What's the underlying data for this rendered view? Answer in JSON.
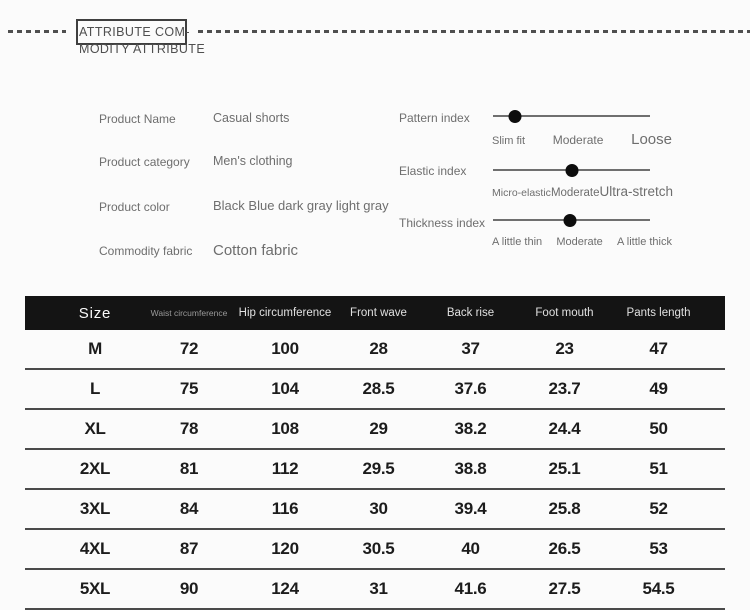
{
  "header": {
    "title_line1": "ATTRIBUTE COM-",
    "title_line2": "MODITY ATTRIBUTE"
  },
  "attributes": [
    {
      "label": "Product Name",
      "value": "Casual shorts"
    },
    {
      "label": "Product category",
      "value": "Men's clothing"
    },
    {
      "label": "Product color",
      "value": "Black Blue dark gray light gray"
    },
    {
      "label": "Commodity fabric",
      "value": "Cotton fabric"
    }
  ],
  "sliders": [
    {
      "label": "Pattern index",
      "value_pct": 14,
      "ticks": [
        "Slim fit",
        "Moderate",
        "Loose"
      ]
    },
    {
      "label": "Elastic index",
      "value_pct": 50,
      "ticks": [
        "Micro-elastic",
        "Moderate",
        "Ultra-stretch"
      ]
    },
    {
      "label": "Thickness index",
      "value_pct": 49,
      "ticks": [
        "A little thin",
        "Moderate",
        "A little thick"
      ]
    }
  ],
  "size_table": {
    "columns": [
      "Size",
      "Waist circumference",
      "Hip circumference",
      "Front wave",
      "Back rise",
      "Foot mouth",
      "Pants length"
    ],
    "rows": [
      [
        "M",
        "72",
        "100",
        "28",
        "37",
        "23",
        "47"
      ],
      [
        "L",
        "75",
        "104",
        "28.5",
        "37.6",
        "23.7",
        "49"
      ],
      [
        "XL",
        "78",
        "108",
        "29",
        "38.2",
        "24.4",
        "50"
      ],
      [
        "2XL",
        "81",
        "112",
        "29.5",
        "38.8",
        "25.1",
        "51"
      ],
      [
        "3XL",
        "84",
        "116",
        "30",
        "39.4",
        "25.8",
        "52"
      ],
      [
        "4XL",
        "87",
        "120",
        "30.5",
        "40",
        "26.5",
        "53"
      ],
      [
        "5XL",
        "90",
        "124",
        "31",
        "41.6",
        "27.5",
        "54.5"
      ]
    ]
  },
  "colors": {
    "page_background": "#fbfbfb",
    "table_header_bg": "#141414",
    "table_header_text": "#e0e0e0",
    "row_divider": "#4a4a4a",
    "body_text": "#1c1c1c",
    "label_text": "#6e6e6e",
    "slider_dot": "#0d0d0d",
    "slider_track": "#6f6f6f",
    "dashed_rule": "#4f4f4f"
  }
}
